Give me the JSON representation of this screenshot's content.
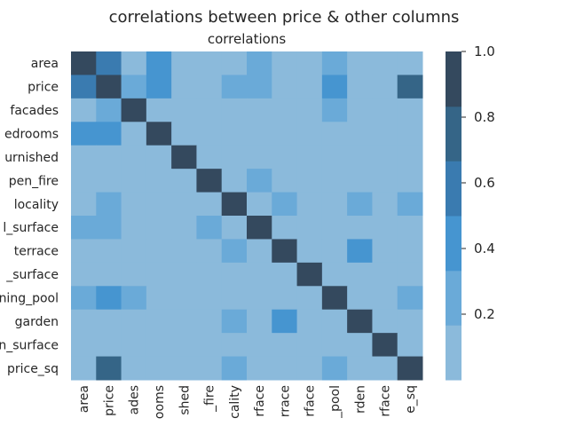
{
  "figure": {
    "suptitle": "correlations between price & other columns"
  },
  "chart_data": {
    "type": "heatmap",
    "title": "correlations",
    "row_labels": [
      "area",
      "price",
      "facades",
      "edrooms",
      "urnished",
      "pen_fire",
      "locality",
      "l_surface",
      "terrace",
      "_surface",
      "ning_pool",
      "garden",
      "n_surface",
      "price_sq"
    ],
    "col_labels": [
      "area",
      "price",
      "ades",
      "ooms",
      "shed",
      "_fire",
      "cality",
      "rface",
      "rrace",
      "rface",
      "_pool",
      "rden",
      "rface",
      "e_sq"
    ],
    "values": [
      [
        1.0,
        0.6,
        0.1,
        0.4,
        0.1,
        0.1,
        0.1,
        0.3,
        0.1,
        0.1,
        0.3,
        0.1,
        0.1,
        0.1
      ],
      [
        0.6,
        1.0,
        0.3,
        0.4,
        0.1,
        0.1,
        0.2,
        0.2,
        0.1,
        0.1,
        0.4,
        0.1,
        0.1,
        0.8
      ],
      [
        0.1,
        0.3,
        1.0,
        0.05,
        0.05,
        0.05,
        0.05,
        0.05,
        0.05,
        0.05,
        0.2,
        0.05,
        0.05,
        0.05
      ],
      [
        0.4,
        0.4,
        0.05,
        1.0,
        0.05,
        0.05,
        0.05,
        0.05,
        0.05,
        0.05,
        0.05,
        0.05,
        0.05,
        0.05
      ],
      [
        0.05,
        0.05,
        0.05,
        0.05,
        1.0,
        0.05,
        0.05,
        0.05,
        0.05,
        0.05,
        0.05,
        0.05,
        0.05,
        0.05
      ],
      [
        0.05,
        0.05,
        0.05,
        0.05,
        0.05,
        1.0,
        0.05,
        0.3,
        0.05,
        0.05,
        0.05,
        0.05,
        0.05,
        0.05
      ],
      [
        0.05,
        0.3,
        0.05,
        0.05,
        0.05,
        0.05,
        1.0,
        0.05,
        0.2,
        0.05,
        0.05,
        0.3,
        0.05,
        0.2
      ],
      [
        0.3,
        0.3,
        0.05,
        0.05,
        0.05,
        0.3,
        0.05,
        1.0,
        0.05,
        0.05,
        0.05,
        0.05,
        0.05,
        0.05
      ],
      [
        0.05,
        0.05,
        0.05,
        0.05,
        0.05,
        0.05,
        0.3,
        0.05,
        1.0,
        0.05,
        0.05,
        0.5,
        0.05,
        0.05
      ],
      [
        0.05,
        0.05,
        0.05,
        0.05,
        0.05,
        0.05,
        0.05,
        0.05,
        0.05,
        1.0,
        0.05,
        0.05,
        0.05,
        0.05
      ],
      [
        0.3,
        0.5,
        0.3,
        0.05,
        0.05,
        0.05,
        0.05,
        0.05,
        0.05,
        0.05,
        1.0,
        0.05,
        0.05,
        0.3
      ],
      [
        0.05,
        0.05,
        0.05,
        0.05,
        0.05,
        0.05,
        0.3,
        0.05,
        0.5,
        0.05,
        0.05,
        1.0,
        0.05,
        0.05
      ],
      [
        0.05,
        0.05,
        0.05,
        0.05,
        0.05,
        0.05,
        0.05,
        0.05,
        0.05,
        0.05,
        0.05,
        0.05,
        1.0,
        0.05
      ],
      [
        0.05,
        0.8,
        0.05,
        0.05,
        0.05,
        0.05,
        0.3,
        0.05,
        0.05,
        0.05,
        0.3,
        0.05,
        0.05,
        1.0
      ]
    ],
    "colorbar": {
      "ticks": [
        0.2,
        0.4,
        0.6,
        0.8,
        1.0
      ],
      "tick_labels": [
        "0.2",
        "0.4",
        "0.6",
        "0.8",
        "1.0"
      ],
      "range": [
        0.0,
        1.0
      ],
      "boundaries": [
        0.0,
        0.167,
        0.333,
        0.5,
        0.667,
        0.833,
        1.0
      ],
      "colors": [
        "#8bbadb",
        "#6aaad8",
        "#4695d0",
        "#3a7bb0",
        "#356587",
        "#34495e"
      ]
    },
    "grid": false
  }
}
